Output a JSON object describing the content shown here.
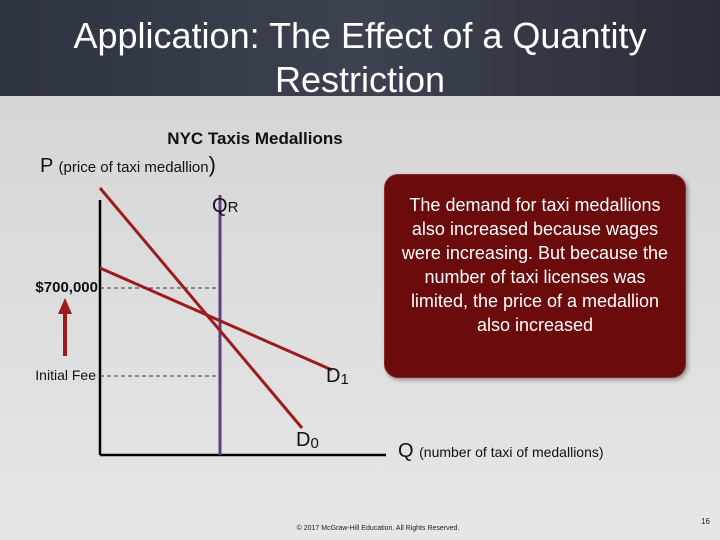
{
  "header": {
    "title": "Application: The Effect of a Quantity Restriction"
  },
  "diagram": {
    "subtitle": "NYC Taxis Medallions",
    "y_axis": {
      "symbol": "P",
      "text": "(price of taxi medallion",
      "close": ")"
    },
    "x_axis": {
      "symbol": "Q",
      "text": "(number of taxi of medallions)"
    },
    "supply_label": {
      "main": "Q",
      "sub": "R"
    },
    "demand_new": {
      "main": "D",
      "sub": "1"
    },
    "demand_old": {
      "main": "D",
      "sub": "0"
    },
    "price_high": "$700,000",
    "price_low": "Initial Fee",
    "callout": "The demand for taxi medallions also increased because wages were increasing.  But because the number of taxi licenses was limited, the price of a medallion also increased"
  },
  "footer": {
    "copyright": "© 2017 McGraw-Hill Education. All Rights Reserved.",
    "page": "16"
  }
}
